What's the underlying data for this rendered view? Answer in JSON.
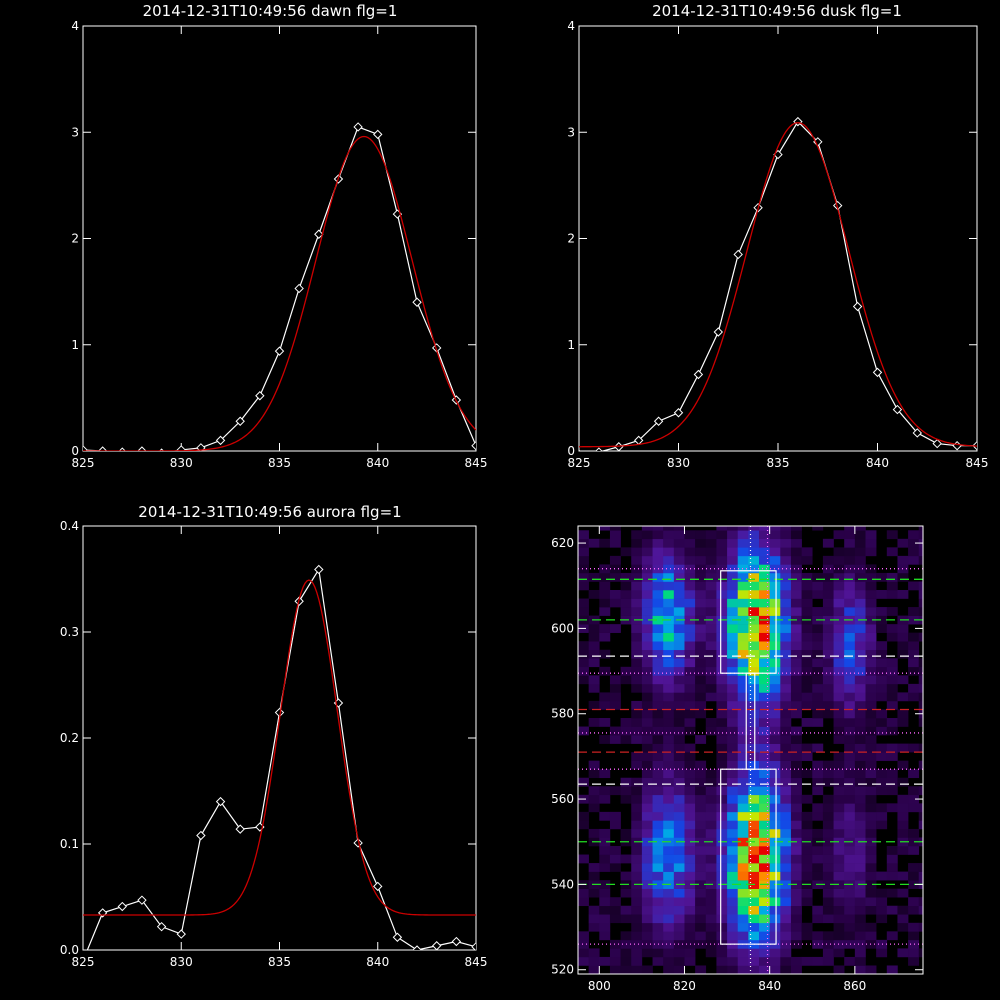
{
  "chart_data": [
    {
      "type": "line",
      "title": "2014-12-31T10:49:56 dawn flg=1",
      "xlim": [
        825,
        845
      ],
      "ylim": [
        0,
        4
      ],
      "x_ticks": [
        "825",
        "830",
        "835",
        "840",
        "845"
      ],
      "y_ticks": [
        "0",
        "1",
        "2",
        "3",
        "4"
      ],
      "series": [
        {
          "color": "#ffffff",
          "marker": "diamond",
          "x": [
            825,
            826,
            827,
            828,
            829,
            830,
            831,
            832,
            833,
            834,
            835,
            836,
            837,
            838,
            839,
            840,
            841,
            842,
            843,
            844,
            845
          ],
          "y": [
            0.01,
            0.0,
            -0.01,
            0.0,
            -0.02,
            0.01,
            0.03,
            0.1,
            0.28,
            0.52,
            0.94,
            1.53,
            2.04,
            2.56,
            3.05,
            2.98,
            2.23,
            1.4,
            0.97,
            0.48,
            0.05
          ]
        },
        {
          "color": "#cc0000",
          "marker": "none",
          "model": "gauss",
          "center": 839.3,
          "sigma": 2.45,
          "peak": 2.96,
          "base": 0.0,
          "x_range": [
            825,
            845
          ]
        }
      ]
    },
    {
      "type": "line",
      "title": "2014-12-31T10:49:56 dusk flg=1",
      "xlim": [
        825,
        845
      ],
      "ylim": [
        0,
        4
      ],
      "x_ticks": [
        "825",
        "830",
        "835",
        "840",
        "845"
      ],
      "y_ticks": [
        "0",
        "1",
        "2",
        "3",
        "4"
      ],
      "series": [
        {
          "color": "#ffffff",
          "marker": "diamond",
          "x": [
            825,
            826,
            827,
            828,
            829,
            830,
            831,
            832,
            833,
            834,
            835,
            836,
            837,
            838,
            839,
            840,
            841,
            842,
            843,
            844,
            845
          ],
          "y": [
            -0.03,
            -0.01,
            0.04,
            0.1,
            0.28,
            0.36,
            0.72,
            1.12,
            1.85,
            2.29,
            2.79,
            3.1,
            2.91,
            2.31,
            1.36,
            0.74,
            0.39,
            0.17,
            0.07,
            0.05,
            0.05
          ]
        },
        {
          "color": "#cc0000",
          "marker": "none",
          "model": "gauss",
          "center": 836.0,
          "sigma": 2.55,
          "peak": 3.05,
          "base": 0.04,
          "x_range": [
            825,
            845
          ]
        }
      ]
    },
    {
      "type": "line",
      "title": "2014-12-31T10:49:56 aurora flg=1",
      "xlim": [
        825,
        845
      ],
      "ylim": [
        0,
        0.4
      ],
      "x_ticks": [
        "825",
        "830",
        "835",
        "840",
        "845"
      ],
      "y_ticks": [
        "0.0",
        "0.1",
        "0.2",
        "0.3",
        "0.4"
      ],
      "series": [
        {
          "color": "#ffffff",
          "marker": "diamond",
          "x": [
            825,
            826,
            827,
            828,
            829,
            830,
            831,
            832,
            833,
            834,
            835,
            836,
            837,
            838,
            839,
            840,
            841,
            842,
            843,
            844,
            845
          ],
          "y": [
            -0.01,
            0.035,
            0.041,
            0.047,
            0.022,
            0.015,
            0.108,
            0.14,
            0.114,
            0.116,
            0.224,
            0.329,
            0.359,
            0.233,
            0.101,
            0.06,
            0.012,
            0.0,
            0.004,
            0.008,
            0.003
          ]
        },
        {
          "color": "#cc0000",
          "marker": "none",
          "model": "gauss",
          "center": 836.5,
          "sigma": 1.45,
          "peak": 0.316,
          "base": 0.033,
          "x_range": [
            825,
            845
          ]
        }
      ]
    },
    {
      "type": "heatmap",
      "title": "",
      "xlim": [
        795,
        876
      ],
      "ylim": [
        519,
        624
      ],
      "x_ticks": [
        "800",
        "820",
        "840",
        "860"
      ],
      "y_ticks": [
        "520",
        "540",
        "560",
        "580",
        "600",
        "620"
      ],
      "columns": [
        {
          "x": 816,
          "width": 7,
          "blobs": [
            {
              "y": 603,
              "h": 17,
              "intensity": 0.62
            },
            {
              "y": 547,
              "h": 20,
              "intensity": 0.55
            }
          ]
        },
        {
          "x": 837,
          "width": 8,
          "blobs": [
            {
              "y": 601,
              "h": 20,
              "intensity": 1.0
            },
            {
              "y": 546,
              "h": 22,
              "intensity": 1.0
            }
          ]
        },
        {
          "x": 859,
          "width": 6,
          "blobs": [
            {
              "y": 596,
              "h": 18,
              "intensity": 0.42
            },
            {
              "y": 547,
              "h": 18,
              "intensity": 0.26
            }
          ]
        }
      ],
      "boxes": [
        {
          "x1": 828.5,
          "x2": 841.5,
          "y1": 589.5,
          "y2": 613.5
        },
        {
          "x1": 828.5,
          "x2": 841.5,
          "y1": 526,
          "y2": 567
        },
        {
          "x1": 834.5,
          "x2": 836.5,
          "y1": 567,
          "y2": 589.5
        }
      ],
      "vlines": [
        {
          "x": 835.5,
          "color": "#ffffff",
          "style": "dotted"
        },
        {
          "x": 839.5,
          "color": "#ff66ff",
          "style": "dotted"
        }
      ],
      "hlines": [
        {
          "y": 614.0,
          "color": "#ff66ff",
          "style": "dotted"
        },
        {
          "y": 611.5,
          "color": "#22dd22",
          "style": "dashed"
        },
        {
          "y": 602.0,
          "color": "#22dd22",
          "style": "dashed"
        },
        {
          "y": 593.5,
          "color": "#ffffff",
          "style": "dashed"
        },
        {
          "y": 589.5,
          "color": "#ff66ff",
          "style": "dotted"
        },
        {
          "y": 581.0,
          "color": "#cc2222",
          "style": "dashed"
        },
        {
          "y": 575.5,
          "color": "#ff66ff",
          "style": "dotted"
        },
        {
          "y": 571.0,
          "color": "#cc2222",
          "style": "dashed"
        },
        {
          "y": 567.0,
          "color": "#ff66ff",
          "style": "dotted"
        },
        {
          "y": 563.5,
          "color": "#ffffff",
          "style": "dashed"
        },
        {
          "y": 550.0,
          "color": "#22dd22",
          "style": "dashed"
        },
        {
          "y": 540.0,
          "color": "#22dd22",
          "style": "dashed"
        },
        {
          "y": 526.0,
          "color": "#ff66ff",
          "style": "dotted"
        }
      ]
    }
  ]
}
